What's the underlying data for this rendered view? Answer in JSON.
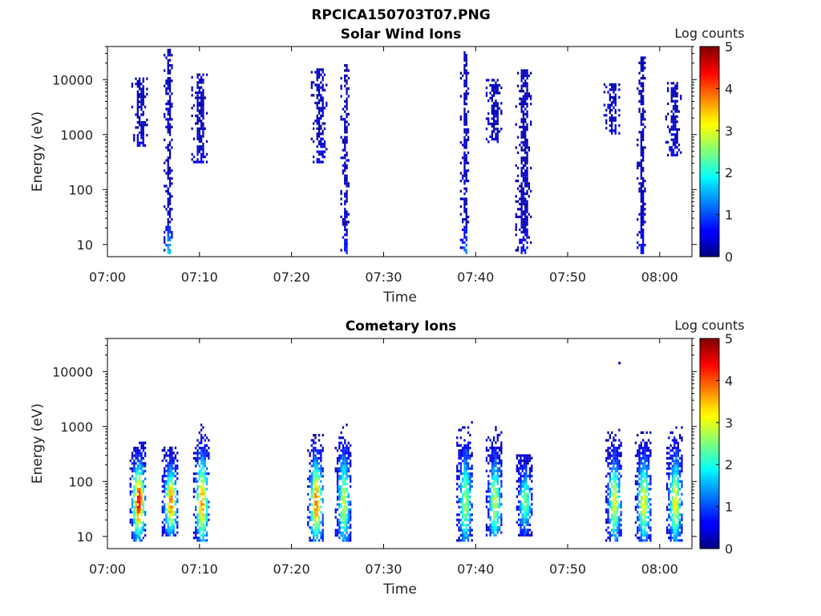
{
  "figure_title": "RPCICA150703T07.PNG",
  "chart_data": [
    {
      "type": "heatmap",
      "title": "Solar Wind Ions",
      "xlabel": "Time",
      "ylabel": "Energy (eV)",
      "x_ticks": [
        "07:00",
        "07:10",
        "07:20",
        "07:30",
        "07:40",
        "07:50",
        "08:00"
      ],
      "x_tick_minutes": [
        0,
        10,
        20,
        30,
        40,
        50,
        60
      ],
      "xlim_minutes": [
        0,
        63.5
      ],
      "y_scale": "log",
      "ylim": [
        6,
        40000
      ],
      "y_ticks": [
        "10",
        "100",
        "1000",
        "10000"
      ],
      "y_tick_values": [
        10,
        100,
        1000,
        10000
      ],
      "colorbar": {
        "label": "Log counts",
        "range": [
          0,
          5
        ],
        "ticks": [
          "0",
          "1",
          "2",
          "3",
          "4",
          "5"
        ]
      },
      "bursts": [
        {
          "time": "07:03.5",
          "t": 3.5,
          "e_min": 600,
          "e_max": 10000,
          "peak_log_counts": 0.3
        },
        {
          "time": "07:06.6",
          "t": 6.6,
          "e_min": 6,
          "e_max": 35000,
          "peak_log_counts": 1.8
        },
        {
          "time": "07:10.0",
          "t": 10.0,
          "e_min": 300,
          "e_max": 14000,
          "peak_log_counts": 0.3
        },
        {
          "time": "07:23.0",
          "t": 23.0,
          "e_min": 300,
          "e_max": 16000,
          "peak_log_counts": 0.3
        },
        {
          "time": "07:25.8",
          "t": 25.8,
          "e_min": 6,
          "e_max": 18000,
          "peak_log_counts": 0.6
        },
        {
          "time": "07:38.8",
          "t": 38.8,
          "e_min": 6,
          "e_max": 30000,
          "peak_log_counts": 1.2
        },
        {
          "time": "07:42.0",
          "t": 42.0,
          "e_min": 700,
          "e_max": 10000,
          "peak_log_counts": 0.3
        },
        {
          "time": "07:45.2",
          "t": 45.2,
          "e_min": 6,
          "e_max": 15000,
          "peak_log_counts": 0.5
        },
        {
          "time": "07:54.8",
          "t": 54.8,
          "e_min": 1000,
          "e_max": 8000,
          "peak_log_counts": 0.3
        },
        {
          "time": "07:58.0",
          "t": 58.0,
          "e_min": 6,
          "e_max": 24000,
          "peak_log_counts": 0.6
        },
        {
          "time": "08:01.5",
          "t": 61.5,
          "e_min": 400,
          "e_max": 9000,
          "peak_log_counts": 0.3
        }
      ]
    },
    {
      "type": "heatmap",
      "title": "Cometary Ions",
      "xlabel": "Time",
      "ylabel": "Energy (eV)",
      "x_ticks": [
        "07:00",
        "07:10",
        "07:20",
        "07:30",
        "07:40",
        "07:50",
        "08:00"
      ],
      "x_tick_minutes": [
        0,
        10,
        20,
        30,
        40,
        50,
        60
      ],
      "xlim_minutes": [
        0,
        63.5
      ],
      "y_scale": "log",
      "ylim": [
        6,
        40000
      ],
      "y_ticks": [
        "10",
        "100",
        "1000",
        "10000"
      ],
      "y_tick_values": [
        10,
        100,
        1000,
        10000
      ],
      "colorbar": {
        "label": "Log counts",
        "range": [
          0,
          5
        ],
        "ticks": [
          "0",
          "1",
          "2",
          "3",
          "4",
          "5"
        ]
      },
      "bursts": [
        {
          "time": "07:03.3",
          "t": 3.3,
          "e_min": 8,
          "e_max": 500,
          "peak_log_counts": 4.2
        },
        {
          "time": "07:06.8",
          "t": 6.8,
          "e_min": 10,
          "e_max": 400,
          "peak_log_counts": 3.6
        },
        {
          "time": "07:10.2",
          "t": 10.2,
          "e_min": 8,
          "e_max": 1100,
          "peak_log_counts": 3.4
        },
        {
          "time": "07:22.6",
          "t": 22.6,
          "e_min": 8,
          "e_max": 800,
          "peak_log_counts": 3.7
        },
        {
          "time": "07:25.6",
          "t": 25.6,
          "e_min": 8,
          "e_max": 1500,
          "peak_log_counts": 2.6
        },
        {
          "time": "07:38.8",
          "t": 38.8,
          "e_min": 8,
          "e_max": 1500,
          "peak_log_counts": 2.4
        },
        {
          "time": "07:42.0",
          "t": 42.0,
          "e_min": 10,
          "e_max": 1000,
          "peak_log_counts": 2.6
        },
        {
          "time": "07:45.3",
          "t": 45.3,
          "e_min": 10,
          "e_max": 300,
          "peak_log_counts": 2.2
        },
        {
          "time": "07:55.0",
          "t": 55.0,
          "e_min": 8,
          "e_max": 900,
          "peak_log_counts": 2.8
        },
        {
          "time": "07:58.2",
          "t": 58.2,
          "e_min": 8,
          "e_max": 800,
          "peak_log_counts": 2.9
        },
        {
          "time": "08:01.6",
          "t": 61.6,
          "e_min": 8,
          "e_max": 1100,
          "peak_log_counts": 2.8
        }
      ],
      "isolated_points": [
        {
          "time": "07:55.5",
          "t": 55.5,
          "energy": 14000,
          "log_counts": 0.3
        }
      ]
    }
  ]
}
